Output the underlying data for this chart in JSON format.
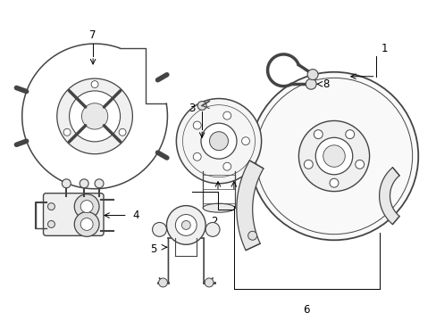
{
  "background_color": "#ffffff",
  "line_color": "#444444",
  "label_color": "#000000",
  "fig_width": 4.89,
  "fig_height": 3.6,
  "label_fontsize": 8.5
}
